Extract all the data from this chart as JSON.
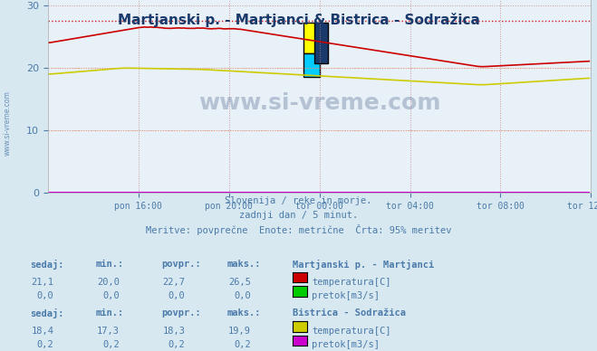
{
  "title": "Martjanski p. - Martjanci & Bistrica - Sodražica",
  "title_color": "#1a3a6b",
  "background_color": "#d8e8f0",
  "plot_bg_color": "#e8f0f8",
  "grid_color": "#c08080",
  "grid_style": "dotted",
  "xlabel_ticks": [
    "pon 16:00",
    "pon 20:00",
    "tor 00:00",
    "tor 04:00",
    "tor 08:00",
    "tor 12:00"
  ],
  "yticks": [
    0,
    10,
    20,
    30
  ],
  "ylim": [
    0,
    32
  ],
  "xlim": [
    0,
    288
  ],
  "subtitle1": "Slovenija / reke in morje.",
  "subtitle2": "zadnji dan / 5 minut.",
  "subtitle3": "Meritve: povprečne  Enote: metrične  Črta: 95% meritev",
  "subtitle_color": "#4a7aaa",
  "watermark": "www.si-vreme.com",
  "watermark_color": "#1a3a6b",
  "watermark_alpha": 0.25,
  "logo_colors": [
    "#ffff00",
    "#00ccff",
    "#1a3a6b"
  ],
  "station1_name": "Martjanski p. - Martjanci",
  "station1_temp_color": "#cc0000",
  "station1_flow_color": "#00cc00",
  "station2_name": "Bistrica - Sodražica",
  "station2_temp_color": "#cccc00",
  "station2_flow_color": "#cc00cc",
  "table_header_color": "#4a7aaa",
  "table_value_color": "#4a7aaa",
  "station1_sedaj": "21,1",
  "station1_min": "20,0",
  "station1_povpr": "22,7",
  "station1_maks": "26,5",
  "station1_flow_sedaj": "0,0",
  "station1_flow_min": "0,0",
  "station1_flow_povpr": "0,0",
  "station1_flow_maks": "0,0",
  "station2_sedaj": "18,4",
  "station2_min": "17,3",
  "station2_povpr": "18,3",
  "station2_maks": "19,9",
  "station2_flow_sedaj": "0,2",
  "station2_flow_min": "0,2",
  "station2_flow_povpr": "0,2",
  "station2_flow_maks": "0,2",
  "dashed_line_y": 27.5,
  "dashed_line_color": "#cc0000",
  "dashed_line2_y": 20.0,
  "dashed_line2_color": "#ff9966",
  "dashed_line3_y": 10.0,
  "dashed_line3_color": "#ff9966"
}
